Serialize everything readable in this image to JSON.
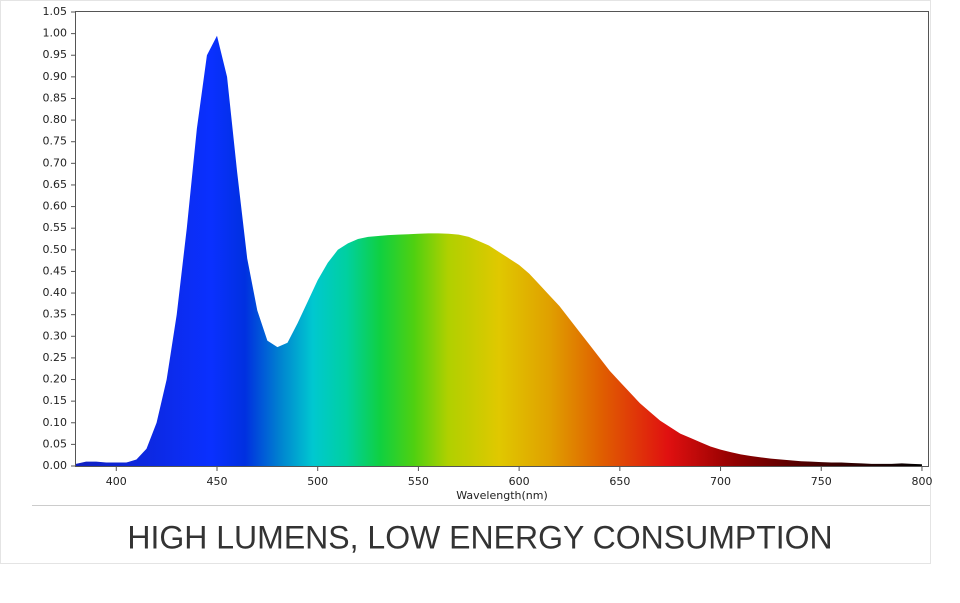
{
  "chart_data": {
    "type": "area",
    "title": "HIGH LUMENS, LOW ENERGY CONSUMPTION",
    "x_label": "Wavelength(nm)",
    "x": [
      380,
      385,
      390,
      395,
      400,
      405,
      410,
      415,
      420,
      425,
      430,
      435,
      440,
      445,
      450,
      455,
      460,
      465,
      470,
      475,
      480,
      485,
      490,
      495,
      500,
      505,
      510,
      515,
      520,
      525,
      530,
      535,
      540,
      545,
      550,
      555,
      560,
      565,
      570,
      575,
      580,
      585,
      590,
      595,
      600,
      605,
      610,
      615,
      620,
      625,
      630,
      635,
      640,
      645,
      650,
      655,
      660,
      665,
      670,
      675,
      680,
      685,
      690,
      695,
      700,
      705,
      710,
      715,
      720,
      725,
      730,
      735,
      740,
      745,
      750,
      755,
      760,
      765,
      770,
      775,
      780,
      785,
      790,
      795,
      800
    ],
    "values": [
      0.005,
      0.01,
      0.01,
      0.008,
      0.008,
      0.008,
      0.015,
      0.04,
      0.1,
      0.2,
      0.35,
      0.55,
      0.78,
      0.95,
      0.995,
      0.9,
      0.68,
      0.48,
      0.36,
      0.29,
      0.275,
      0.285,
      0.33,
      0.38,
      0.43,
      0.47,
      0.5,
      0.515,
      0.525,
      0.53,
      0.532,
      0.534,
      0.535,
      0.536,
      0.537,
      0.538,
      0.538,
      0.537,
      0.535,
      0.53,
      0.52,
      0.51,
      0.495,
      0.48,
      0.465,
      0.445,
      0.42,
      0.395,
      0.37,
      0.34,
      0.31,
      0.28,
      0.25,
      0.22,
      0.195,
      0.17,
      0.145,
      0.125,
      0.105,
      0.09,
      0.075,
      0.065,
      0.055,
      0.045,
      0.038,
      0.032,
      0.027,
      0.023,
      0.02,
      0.017,
      0.015,
      0.013,
      0.011,
      0.01,
      0.009,
      0.008,
      0.008,
      0.007,
      0.006,
      0.005,
      0.005,
      0.005,
      0.006,
      0.005,
      0.004
    ],
    "xlim": [
      380,
      803
    ],
    "ylim": [
      0,
      1.05
    ],
    "xticks": [
      400,
      450,
      500,
      550,
      600,
      650,
      700,
      750,
      800
    ],
    "yticks": [
      {
        "value": 0,
        "label": "0.00"
      },
      {
        "value": 0.05,
        "label": "0.05"
      },
      {
        "value": 0.1,
        "label": "0.10"
      },
      {
        "value": 0.15,
        "label": "0.15"
      },
      {
        "value": 0.2,
        "label": "0.20"
      },
      {
        "value": 0.25,
        "label": "0.25"
      },
      {
        "value": 0.3,
        "label": "0.30"
      },
      {
        "value": 0.35,
        "label": "0.35"
      },
      {
        "value": 0.4,
        "label": "0.40"
      },
      {
        "value": 0.45,
        "label": "0.45"
      },
      {
        "value": 0.5,
        "label": "0.50"
      },
      {
        "value": 0.55,
        "label": "0.55"
      },
      {
        "value": 0.6,
        "label": "0.60"
      },
      {
        "value": 0.65,
        "label": "0.65"
      },
      {
        "value": 0.7,
        "label": "0.70"
      },
      {
        "value": 0.75,
        "label": "0.75"
      },
      {
        "value": 0.8,
        "label": "0.80"
      },
      {
        "value": 0.85,
        "label": "0.85"
      },
      {
        "value": 0.9,
        "label": "0.90"
      },
      {
        "value": 0.95,
        "label": "0.95"
      },
      {
        "value": 1,
        "label": "1.00"
      },
      {
        "value": 1.05,
        "label": "1.05"
      }
    ]
  }
}
